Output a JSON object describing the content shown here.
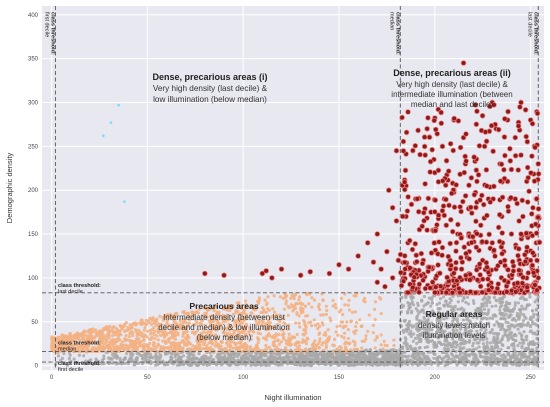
{
  "chart_data": {
    "type": "scatter",
    "xlabel": "Night illumination",
    "ylabel": "Demographic density",
    "xlim": [
      -5,
      257
    ],
    "ylim": [
      -5,
      410
    ],
    "x_ticks": [
      0,
      50,
      100,
      150,
      200,
      250
    ],
    "y_ticks": [
      0,
      50,
      100,
      150,
      200,
      250,
      300,
      350,
      400
    ],
    "grid": true,
    "background": "#e8e8f0",
    "colors": {
      "dense": "#8b1a1a",
      "dense_edge": "#f08080",
      "precarious": "#f4b183",
      "regular": "#a8a8a8",
      "cyan": "#7fe0f0"
    },
    "thresholds": {
      "illumination": [
        {
          "x": 2,
          "label": "class threshold:",
          "sublabel": "first decile"
        },
        {
          "x": 182,
          "label": "class threshold:",
          "sublabel": "median"
        },
        {
          "x": 254,
          "label": "class threshold:",
          "sublabel": "last decile"
        }
      ],
      "density": [
        {
          "y": 83,
          "label": "class threshold:",
          "sublabel": "last decile"
        },
        {
          "y": 16,
          "label": "class threshold:",
          "sublabel": "median"
        },
        {
          "y": 4,
          "label": "class threshold:",
          "sublabel": "first decile"
        }
      ]
    },
    "annotations": [
      {
        "id": "dense-i",
        "title": "Dense, precarious areas (i)",
        "lines": [
          "Very high density (last decile) &",
          "low illumination (below median)"
        ]
      },
      {
        "id": "dense-ii",
        "title": "Dense, precarious areas (ii)",
        "lines": [
          "Very high density (last decile) &",
          "intermediate illumination (between",
          "median and last decile)"
        ]
      },
      {
        "id": "precarious",
        "title": "Precarious areas",
        "lines": [
          "Intermediate density (between last",
          "decile and median) & low illumination",
          "(below median)"
        ]
      },
      {
        "id": "regular",
        "title": "Regular areas",
        "lines": [
          "density levels match",
          "illumination levels"
        ]
      }
    ],
    "series": [
      {
        "category": "dense",
        "points": [
          [
            80,
            105
          ],
          [
            90,
            103
          ],
          [
            110,
            105
          ],
          [
            112,
            108
          ],
          [
            115,
            100
          ],
          [
            120,
            110
          ],
          [
            130,
            103
          ],
          [
            135,
            107
          ],
          [
            145,
            105
          ],
          [
            150,
            115
          ],
          [
            155,
            110
          ],
          [
            160,
            125
          ],
          [
            165,
            140
          ],
          [
            168,
            118
          ],
          [
            170,
            150
          ],
          [
            172,
            110
          ],
          [
            175,
            130
          ],
          [
            176,
            200
          ],
          [
            178,
            180
          ],
          [
            180,
            245
          ],
          [
            180,
            165
          ],
          [
            181,
            120
          ],
          [
            178,
            100
          ],
          [
            174,
            90
          ],
          [
            170,
            95
          ],
          [
            185,
            205
          ],
          [
            185,
            170
          ],
          [
            186,
            140
          ],
          [
            188,
            110
          ],
          [
            190,
            190
          ],
          [
            192,
            155
          ],
          [
            194,
            120
          ],
          [
            195,
            240
          ],
          [
            196,
            270
          ],
          [
            198,
            175
          ],
          [
            200,
            140
          ],
          [
            200,
            220
          ],
          [
            202,
            105
          ],
          [
            204,
            250
          ],
          [
            205,
            190
          ],
          [
            206,
            160
          ],
          [
            208,
            120
          ],
          [
            210,
            280
          ],
          [
            210,
            200
          ],
          [
            212,
            150
          ],
          [
            214,
            110
          ],
          [
            215,
            345
          ],
          [
            215,
            260
          ],
          [
            216,
            230
          ],
          [
            218,
            180
          ],
          [
            218,
            130
          ],
          [
            220,
            100
          ],
          [
            222,
            290
          ],
          [
            222,
            210
          ],
          [
            224,
            160
          ],
          [
            225,
            120
          ],
          [
            226,
            250
          ],
          [
            228,
            190
          ],
          [
            230,
            140
          ],
          [
            230,
            300
          ],
          [
            232,
            270
          ],
          [
            232,
            110
          ],
          [
            234,
            230
          ],
          [
            235,
            170
          ],
          [
            236,
            130
          ],
          [
            238,
            280
          ],
          [
            238,
            210
          ],
          [
            240,
            150
          ],
          [
            240,
            100
          ],
          [
            242,
            260
          ],
          [
            242,
            190
          ],
          [
            244,
            120
          ],
          [
            245,
            300
          ],
          [
            245,
            240
          ],
          [
            246,
            170
          ],
          [
            248,
            130
          ],
          [
            248,
            210
          ],
          [
            250,
            280
          ],
          [
            250,
            150
          ],
          [
            251,
            110
          ],
          [
            252,
            250
          ],
          [
            253,
            190
          ],
          [
            253,
            140
          ],
          [
            254,
            100
          ],
          [
            254,
            230
          ],
          [
            254,
            170
          ]
        ]
      },
      {
        "category": "cyan",
        "points": [
          [
            35,
            297
          ],
          [
            31,
            277
          ],
          [
            27,
            262
          ],
          [
            38,
            187
          ]
        ]
      }
    ]
  }
}
